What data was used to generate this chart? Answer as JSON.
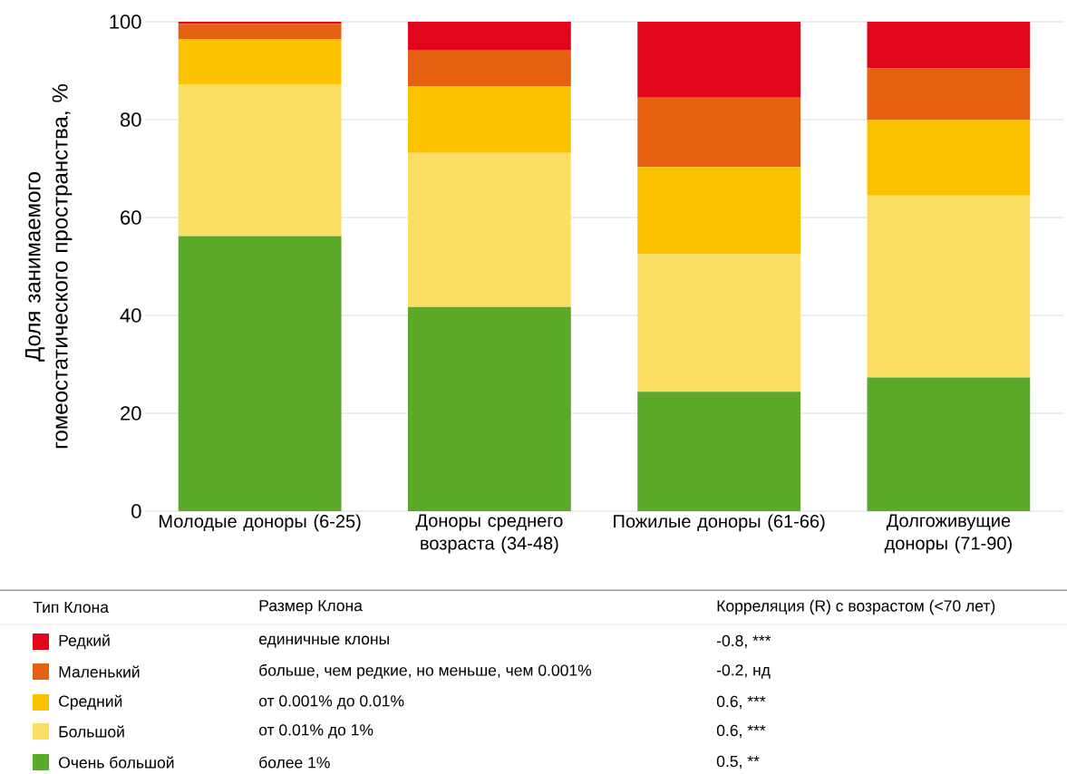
{
  "chart_data": {
    "type": "bar",
    "stacked": true,
    "ylabel": "Доля занимаемого гомеостатического пространства, %",
    "categories": [
      "Молодые доноры (6-25)",
      "Доноры среднего возраста (34-48)",
      "Пожилые доноры (61-66)",
      "Долгоживущие доноры (71-90)"
    ],
    "series": [
      {
        "name": "Очень большой",
        "color": "#5aa928",
        "values": [
          56.2,
          41.7,
          24.4,
          27.3
        ]
      },
      {
        "name": "Большой",
        "color": "#fcdf62",
        "values": [
          31.0,
          31.5,
          28.1,
          37.2
        ]
      },
      {
        "name": "Средний",
        "color": "#fbc200",
        "values": [
          9.2,
          13.6,
          17.8,
          15.4
        ]
      },
      {
        "name": "Маленький",
        "color": "#e66012",
        "values": [
          3.2,
          7.3,
          14.2,
          10.6
        ]
      },
      {
        "name": "Редкий",
        "color": "#e1061b",
        "values": [
          0.4,
          5.9,
          15.5,
          9.5
        ]
      }
    ],
    "ylim": [
      0,
      100
    ],
    "yticks": [
      0,
      20,
      40,
      60,
      80,
      100
    ],
    "grid": "y",
    "legend": "bottom",
    "legend_title": "Тип Клона",
    "annotations": [
      "Размер Клона",
      "Корреляция (R) с возрастом (<70 лет)",
      "единичные клоны",
      "-0.8, ***",
      "больше, чем редкие, но меньше, чем 0.001%",
      "-0.2, нд",
      "от 0.001% до 0.01%",
      "0.6, ***",
      "от 0.01% до 1%",
      "0.6, ***",
      "более 1%",
      "0.5, **"
    ]
  }
}
